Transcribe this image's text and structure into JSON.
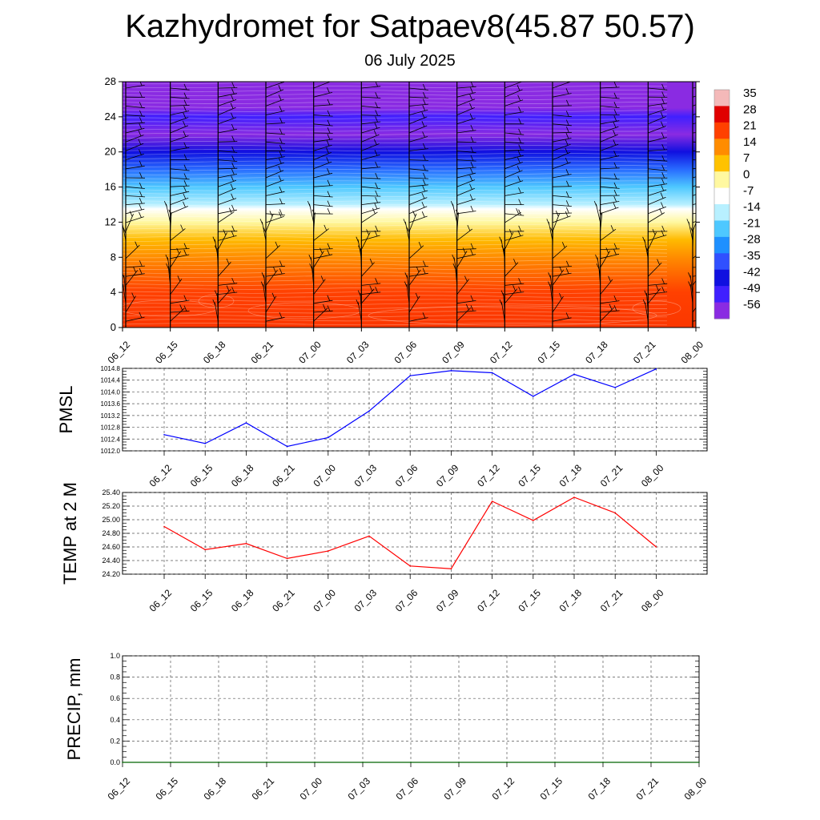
{
  "title": "Kazhydromet for Satpaev8(45.87 50.57)",
  "subtitle": "06 July 2025",
  "chart_data": [
    {
      "type": "heatmap",
      "name": "upper-air-temperature",
      "y_ticks": [
        0,
        4,
        8,
        12,
        16,
        20,
        24,
        28
      ],
      "ylim": [
        0,
        28
      ],
      "x_ticks": [
        "06_12",
        "06_15",
        "06_18",
        "06_21",
        "07_00",
        "07_03",
        "07_06",
        "07_09",
        "07_12",
        "07_15",
        "07_18",
        "07_21",
        "08_00"
      ],
      "colorbar": {
        "labels": [
          "35",
          "28",
          "21",
          "14",
          "7",
          "0",
          "-7",
          "-14",
          "-21",
          "-28",
          "-35",
          "-42",
          "-49",
          "-56"
        ],
        "colors": [
          "#f4b9b9",
          "#e00000",
          "#ff4000",
          "#ff8c00",
          "#ffc200",
          "#fff8a0",
          "#ffffff",
          "#b8f0ff",
          "#4ec8ff",
          "#1e90ff",
          "#3050ff",
          "#1010e0",
          "#4020ff",
          "#8a2be2"
        ]
      },
      "temperature_profile": [
        {
          "level": 0,
          "temp": 22
        },
        {
          "level": 4,
          "temp": 21
        },
        {
          "level": 8,
          "temp": 14
        },
        {
          "level": 10,
          "temp": 8
        },
        {
          "level": 12,
          "temp": 0
        },
        {
          "level": 13.5,
          "temp": -7
        },
        {
          "level": 14,
          "temp": -14
        },
        {
          "level": 16,
          "temp": -21
        },
        {
          "level": 18,
          "temp": -32
        },
        {
          "level": 20,
          "temp": -42
        },
        {
          "level": 22,
          "temp": -56
        },
        {
          "level": 24,
          "temp": -49
        },
        {
          "level": 25,
          "temp": -56
        },
        {
          "level": 28,
          "temp": -56
        }
      ],
      "wind_barbs": true
    },
    {
      "type": "line",
      "ylabel": "PMSL",
      "ylim": [
        1012.0,
        1014.8
      ],
      "y_ticks": [
        "1012.0",
        "1012.4",
        "1012.8",
        "1013.2",
        "1013.6",
        "1014.0",
        "1014.4",
        "1014.8"
      ],
      "categories": [
        "06_12",
        "06_15",
        "06_18",
        "06_21",
        "07_00",
        "07_03",
        "07_06",
        "07_09",
        "07_12",
        "07_15",
        "07_18",
        "07_21",
        "08_00"
      ],
      "series": [
        {
          "color": "#0000ff",
          "values": [
            1012.55,
            1012.25,
            1012.95,
            1012.15,
            1012.45,
            1013.35,
            1014.55,
            1014.72,
            1014.65,
            1013.85,
            1014.6,
            1014.15,
            1014.78
          ]
        }
      ]
    },
    {
      "type": "line",
      "ylabel": "TEMP at 2 M",
      "ylim": [
        24.2,
        25.4
      ],
      "y_ticks": [
        "24.20",
        "24.40",
        "24.60",
        "24.80",
        "25.00",
        "25.20",
        "25.40"
      ],
      "categories": [
        "06_12",
        "06_15",
        "06_18",
        "06_21",
        "07_00",
        "07_03",
        "07_06",
        "07_09",
        "07_12",
        "07_15",
        "07_18",
        "07_21",
        "08_00"
      ],
      "series": [
        {
          "color": "#ff0000",
          "values": [
            24.9,
            24.56,
            24.65,
            24.43,
            24.54,
            24.76,
            24.32,
            24.28,
            25.27,
            24.99,
            25.33,
            25.1,
            24.6
          ]
        }
      ]
    },
    {
      "type": "line",
      "ylabel": "PRECIP, mm",
      "ylim": [
        0.0,
        1.0
      ],
      "y_ticks": [
        "0.0",
        "0.2",
        "0.4",
        "0.6",
        "0.8",
        "1.0"
      ],
      "categories": [
        "06_12",
        "06_15",
        "06_18",
        "06_21",
        "07_00",
        "07_03",
        "07_06",
        "07_09",
        "07_12",
        "07_15",
        "07_18",
        "07_21",
        "08_00"
      ],
      "series": [
        {
          "color": "#006400",
          "values": [
            0,
            0,
            0,
            0,
            0,
            0,
            0,
            0,
            0,
            0,
            0,
            0,
            0
          ]
        }
      ]
    }
  ]
}
